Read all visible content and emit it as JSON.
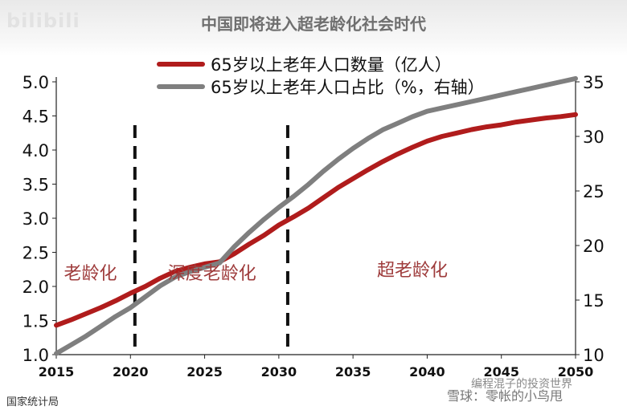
{
  "watermark": "bilibili",
  "source": "国家统计局",
  "credit": "雪球：零帐的小鸟甩",
  "credit_overlay": "编程混子的投资世界",
  "colors": {
    "series1": "#b01c1c",
    "series2": "#7f7f7f",
    "annotation": "#9e3b3b"
  },
  "chart_data": {
    "type": "line",
    "title": "中国即将进入超老龄化社会时代",
    "x": [
      2015,
      2016,
      2017,
      2018,
      2019,
      2020,
      2021,
      2022,
      2023,
      2024,
      2025,
      2026,
      2027,
      2028,
      2029,
      2030,
      2031,
      2032,
      2033,
      2034,
      2035,
      2036,
      2037,
      2038,
      2039,
      2040,
      2041,
      2042,
      2043,
      2044,
      2045,
      2046,
      2047,
      2048,
      2049,
      2050
    ],
    "xticks": [
      "2015",
      "2020",
      "2025",
      "2030",
      "2035",
      "2040",
      "2045",
      "2050"
    ],
    "xlim": [
      2015,
      2050
    ],
    "ylim_left": [
      1.0,
      5.0
    ],
    "yticks_left": [
      "5.0",
      "4.5",
      "4.0",
      "3.5",
      "3.0",
      "2.5",
      "2.0",
      "1.5",
      "1.0"
    ],
    "ylim_right": [
      10,
      35
    ],
    "yticks_right": [
      "35",
      "30",
      "25",
      "20",
      "15",
      "10"
    ],
    "series": [
      {
        "name": "65岁以上老年人口数量（亿人）",
        "axis": "left",
        "color": "#b01c1c",
        "values": [
          1.43,
          1.51,
          1.6,
          1.69,
          1.79,
          1.9,
          2.0,
          2.12,
          2.22,
          2.28,
          2.33,
          2.36,
          2.48,
          2.62,
          2.75,
          2.9,
          3.02,
          3.15,
          3.3,
          3.45,
          3.58,
          3.71,
          3.83,
          3.94,
          4.04,
          4.13,
          4.2,
          4.25,
          4.3,
          4.34,
          4.37,
          4.41,
          4.44,
          4.47,
          4.49,
          4.52
        ]
      },
      {
        "name": "65岁以上老年人口占比（%，右轴）",
        "axis": "right",
        "color": "#7f7f7f",
        "values": [
          10.1,
          10.9,
          11.7,
          12.6,
          13.5,
          14.3,
          15.3,
          16.3,
          17.1,
          17.6,
          18.0,
          18.4,
          19.9,
          21.2,
          22.4,
          23.5,
          24.5,
          25.6,
          26.8,
          27.9,
          28.9,
          29.8,
          30.6,
          31.2,
          31.8,
          32.3,
          32.6,
          32.9,
          33.2,
          33.5,
          33.8,
          34.1,
          34.4,
          34.7,
          35.0,
          35.3
        ]
      }
    ],
    "dividers": [
      2020.3,
      2030.6
    ],
    "annotations": [
      {
        "text": "老龄化",
        "x": 2017.3,
        "y": 2.2
      },
      {
        "text": "深度老龄化",
        "x": 2025.5,
        "y": 2.2
      },
      {
        "text": "超老龄化",
        "x": 2039.0,
        "y": 2.25
      }
    ],
    "legend_position": "top"
  }
}
